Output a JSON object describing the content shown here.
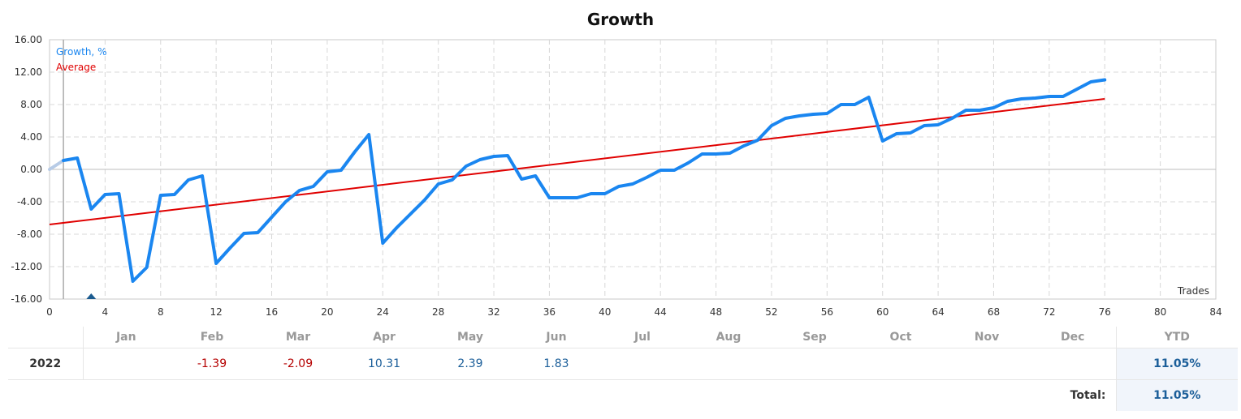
{
  "chart_data": {
    "type": "line",
    "title": "Growth",
    "xlabel": "Trades",
    "ylabel": "",
    "xlim": [
      0,
      84
    ],
    "ylim": [
      -16,
      16
    ],
    "x_ticks": [
      0,
      4,
      8,
      12,
      16,
      20,
      24,
      28,
      32,
      36,
      40,
      44,
      48,
      52,
      56,
      60,
      64,
      68,
      72,
      76,
      80,
      84
    ],
    "y_ticks": [
      "16.00",
      "12.00",
      "8.00",
      "4.00",
      "0.00",
      "-4.00",
      "-8.00",
      "-12.00",
      "-16.00"
    ],
    "grid": true,
    "legend_position": "top-left",
    "series": [
      {
        "name": "Growth, %",
        "color": "#1a86f0",
        "x": [
          0,
          1,
          2,
          3,
          4,
          5,
          6,
          7,
          8,
          9,
          10,
          11,
          12,
          13,
          14,
          15,
          16,
          17,
          18,
          19,
          20,
          21,
          22,
          23,
          24,
          25,
          26,
          27,
          28,
          29,
          30,
          31,
          32,
          33,
          34,
          35,
          36,
          37,
          38,
          39,
          40,
          41,
          42,
          43,
          44,
          45,
          46,
          47,
          48,
          49,
          50,
          51,
          52,
          53,
          54,
          55,
          56,
          57,
          58,
          59,
          60,
          61,
          62,
          63,
          64,
          65,
          66,
          67,
          68,
          69,
          70,
          71,
          72,
          73,
          74,
          75,
          76
        ],
        "values": [
          0.0,
          1.1,
          1.4,
          -4.9,
          -3.1,
          -3.0,
          -13.8,
          -12.1,
          -3.2,
          -3.1,
          -1.3,
          -0.8,
          -11.6,
          -9.7,
          -7.9,
          -7.8,
          -5.9,
          -4.0,
          -2.6,
          -2.1,
          -0.3,
          -0.1,
          2.2,
          4.3,
          -9.1,
          -7.2,
          -5.5,
          -3.8,
          -1.8,
          -1.3,
          0.4,
          1.2,
          1.6,
          1.7,
          -1.2,
          -0.8,
          -3.5,
          -3.5,
          -3.5,
          -3.0,
          -3.0,
          -2.1,
          -1.8,
          -1.0,
          -0.1,
          -0.1,
          0.8,
          1.9,
          1.9,
          2.0,
          2.9,
          3.6,
          5.4,
          6.3,
          6.6,
          6.8,
          6.9,
          8.0,
          8.0,
          8.9,
          3.5,
          4.4,
          4.5,
          5.4,
          5.5,
          6.3,
          7.3,
          7.3,
          7.6,
          8.4,
          8.7,
          8.8,
          9.0,
          9.0,
          9.9,
          10.8,
          11.05
        ]
      },
      {
        "name": "Average",
        "color": "#e00000",
        "x": [
          0,
          76
        ],
        "values": [
          -6.8,
          8.7
        ]
      }
    ],
    "start_marker_x": 1,
    "deposit_marker": {
      "x": 3,
      "y": -16,
      "color": "#1b5b8f"
    }
  },
  "table": {
    "months": [
      "Jan",
      "Feb",
      "Mar",
      "Apr",
      "May",
      "Jun",
      "Jul",
      "Aug",
      "Sep",
      "Oct",
      "Nov",
      "Dec"
    ],
    "ytd_header": "YTD",
    "rows": [
      {
        "year": "2022",
        "cells": [
          "",
          "-1.39",
          "-2.09",
          "10.31",
          "2.39",
          "1.83",
          "",
          "",
          "",
          "",
          "",
          ""
        ],
        "ytd": "11.05%"
      }
    ],
    "total_label": "Total:",
    "total_value": "11.05%"
  }
}
